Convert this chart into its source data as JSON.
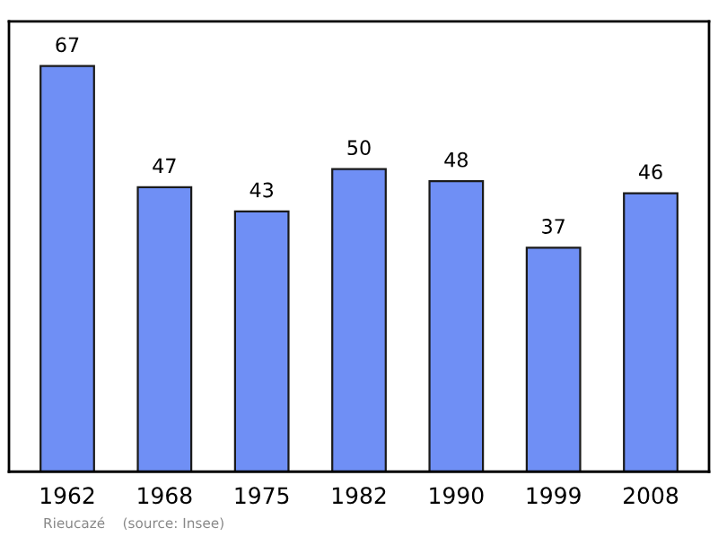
{
  "chart_data": {
    "type": "bar",
    "categories": [
      "1962",
      "1968",
      "1975",
      "1982",
      "1990",
      "1999",
      "2008"
    ],
    "values": [
      67,
      47,
      43,
      50,
      48,
      37,
      46
    ],
    "color": "#6f8ff5",
    "data_labels": true,
    "grid": false,
    "annotations": [
      "Rieucazé    (source: Insee)"
    ]
  }
}
